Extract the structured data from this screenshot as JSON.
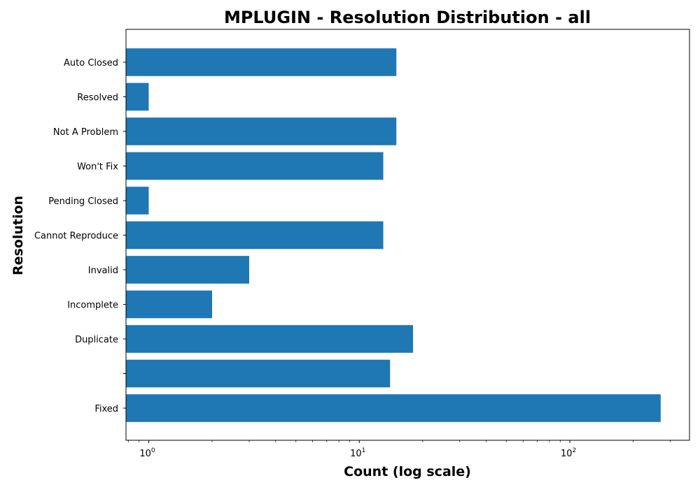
{
  "chart_data": {
    "type": "bar",
    "orientation": "horizontal",
    "title": "MPLUGIN - Resolution Distribution - all",
    "xlabel": "Count (log scale)",
    "ylabel": "Resolution",
    "xscale": "log",
    "xlim": [
      0.78,
      370
    ],
    "x_ticks": [
      {
        "value": 1,
        "base": "10",
        "exp": "0"
      },
      {
        "value": 10,
        "base": "10",
        "exp": "1"
      },
      {
        "value": 100,
        "base": "10",
        "exp": "2"
      }
    ],
    "categories": [
      "Fixed",
      "",
      "Duplicate",
      "Incomplete",
      "Invalid",
      "Cannot Reproduce",
      "Pending Closed",
      "Won't Fix",
      "Not A Problem",
      "Resolved",
      "Auto Closed"
    ],
    "values": [
      270,
      14,
      18,
      2,
      3,
      13,
      1,
      13,
      15,
      1,
      15
    ],
    "grid": false,
    "legend": "none",
    "bar_color": "#1f77b4"
  }
}
